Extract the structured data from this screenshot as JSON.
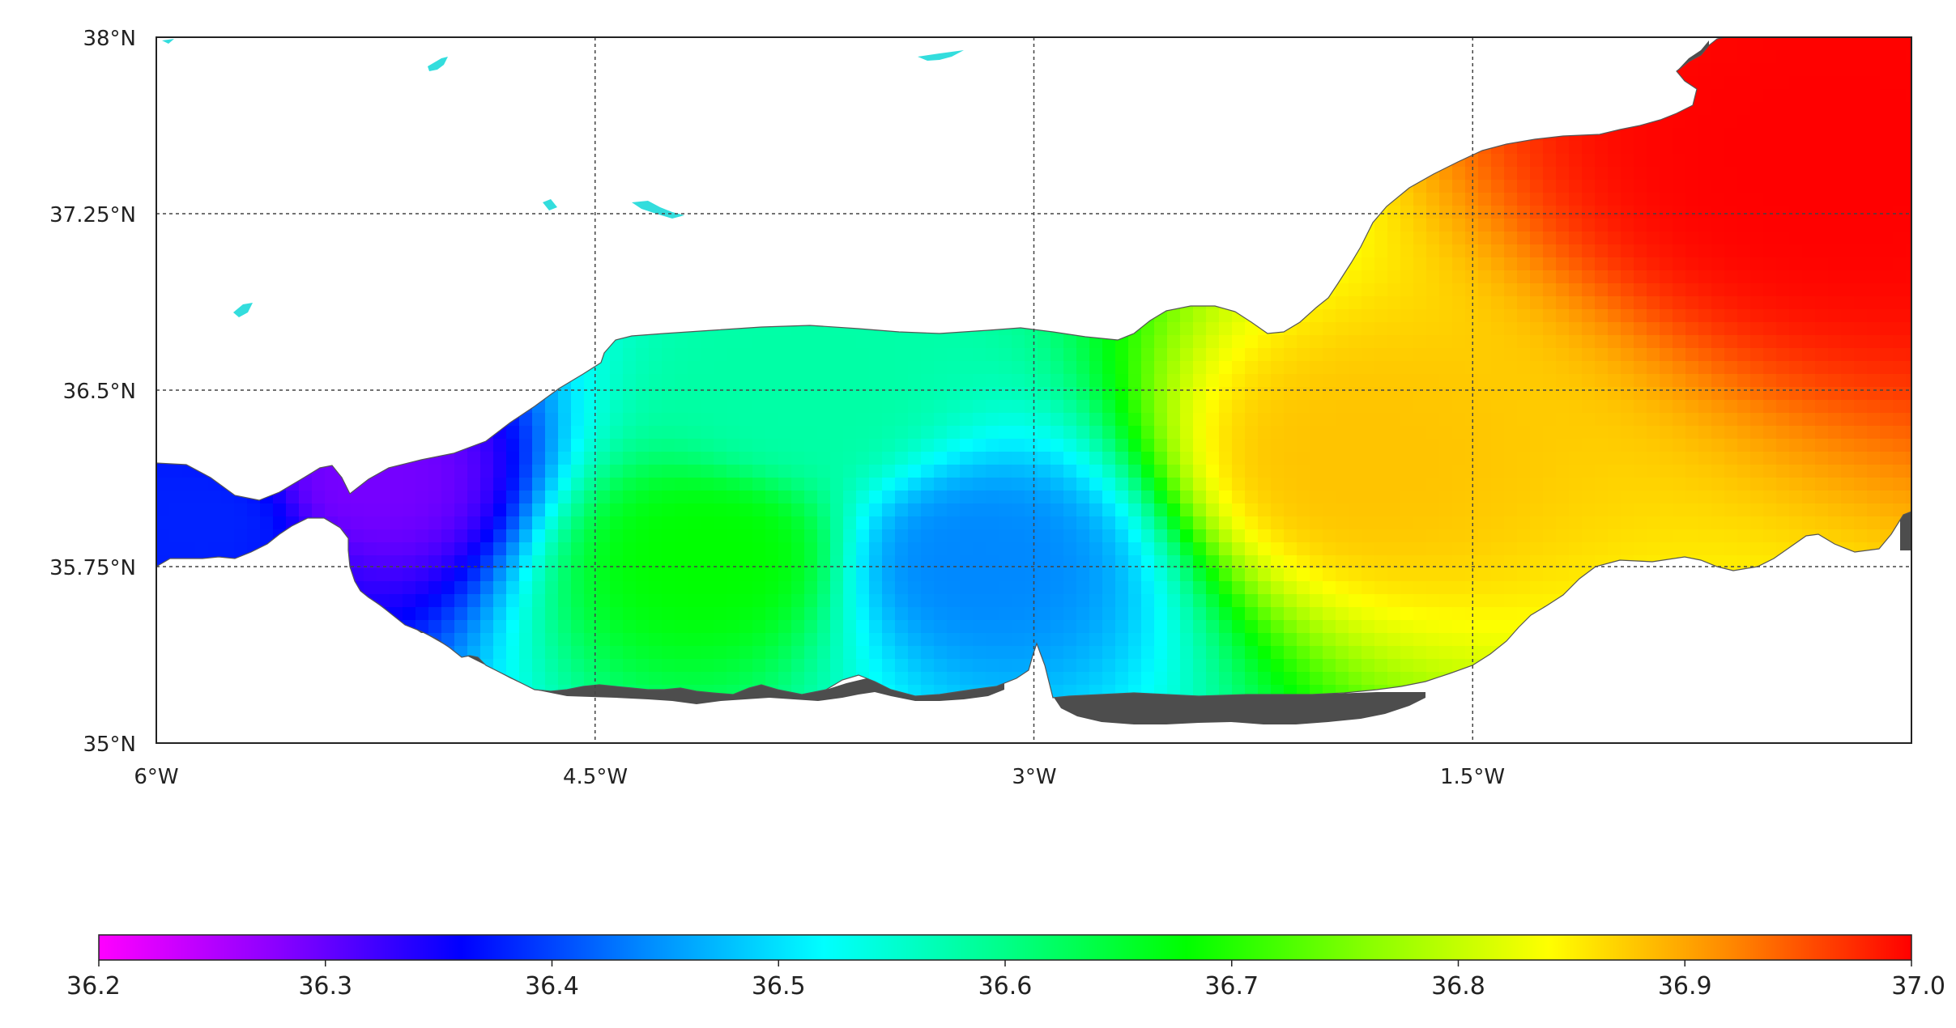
{
  "map": {
    "lon_labels": [
      "6°W",
      "4.5°W",
      "3°W",
      "1.5°W"
    ],
    "lat_labels": [
      "38°N",
      "37.25°N",
      "36.5°N",
      "35.75°N",
      "35°N"
    ],
    "lon_range": [
      -6,
      0
    ],
    "lat_range": [
      35,
      38
    ],
    "grid": true,
    "land_color": "#ffffff",
    "no_data_color": "#4d4d4d",
    "lake_color": "#33dddd"
  },
  "colorbar": {
    "min": 36.2,
    "max": 37.0,
    "tick_labels": [
      "36.2",
      "36.3",
      "36.4",
      "36.5",
      "36.6",
      "36.7",
      "36.8",
      "36.9",
      "37.0"
    ],
    "colors": [
      "#ff00ff",
      "#8800ff",
      "#0000ff",
      "#0088ff",
      "#00ffff",
      "#00ff88",
      "#00ff00",
      "#88ff00",
      "#ffff00",
      "#ff8800",
      "#ff0000"
    ]
  },
  "chart_data": {
    "type": "heatmap",
    "field_hotspots": [
      {
        "lon": -5.8,
        "lat": 35.95,
        "value": 36.38
      },
      {
        "lon": -5.3,
        "lat": 36.1,
        "value": 36.29
      },
      {
        "lon": -4.1,
        "lat": 35.8,
        "value": 36.68
      },
      {
        "lon": -3.2,
        "lat": 35.78,
        "value": 36.44
      },
      {
        "lon": -1.9,
        "lat": 36.2,
        "value": 36.88
      },
      {
        "lon": -0.3,
        "lat": 37.5,
        "value": 37.0
      },
      {
        "lon": -3.8,
        "lat": 36.45,
        "value": 36.58
      }
    ]
  }
}
